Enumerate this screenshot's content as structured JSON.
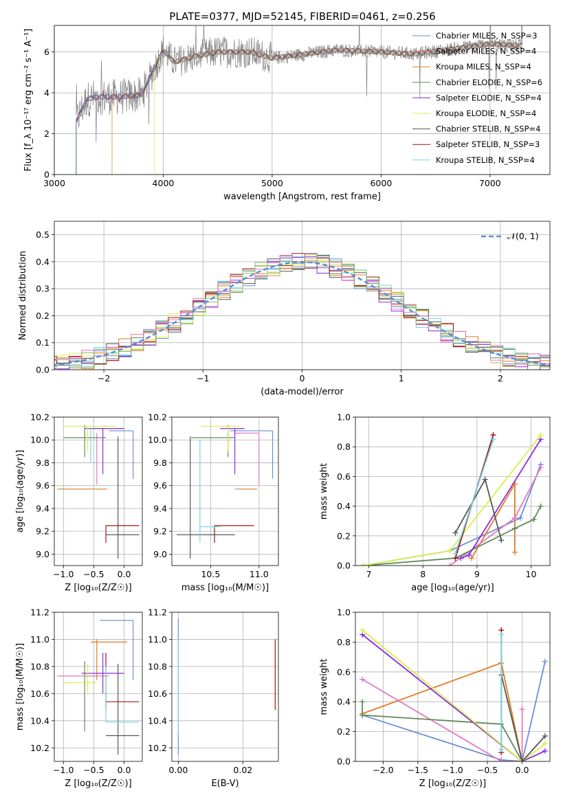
{
  "figure": {
    "title": "PLATE=0377, MJD=52145, FIBERID=0461, z=0.256"
  },
  "colors": {
    "series": [
      "#6b8cd6",
      "#f08080",
      "#e07b20",
      "#5e8a5a",
      "#8a2be2",
      "#d8ee4a",
      "#555555",
      "#a01010",
      "#6fd8e0"
    ],
    "data": "#808080",
    "gaussian": "#5b8fd0",
    "extra_hist": [
      "#e377c2",
      "#8fbc5f"
    ],
    "panel_colors": [
      "#6b8cd6",
      "#e07b20",
      "#e377c2",
      "#5e8a5a",
      "#8a2be2",
      "#d8ee4a",
      "#555555",
      "#a01010",
      "#6fd8e0"
    ]
  },
  "chart_data": [
    {
      "id": "spectrum",
      "type": "line",
      "title": "PLATE=0377, MJD=52145, FIBERID=0461, z=0.256",
      "xlabel": "wavelength [Angstrom, rest frame]",
      "ylabel": "Flux [f_λ 10⁻¹⁷ erg cm⁻² s⁻¹ A⁻¹]",
      "xlim": [
        3000,
        7550
      ],
      "ylim": [
        0,
        7.3
      ],
      "xticks": [
        3000,
        4000,
        5000,
        6000,
        7000
      ],
      "yticks": [
        0,
        2,
        4,
        6
      ],
      "legend_position": "top-right",
      "legend": [
        {
          "name": "Chabrier MILES, N_SSP=3"
        },
        {
          "name": "Salpeter MILES, N_SSP=4"
        },
        {
          "name": "Kroupa MILES, N_SSP=4"
        },
        {
          "name": "Chabrier ELODIE, N_SSP=6"
        },
        {
          "name": "Salpeter ELODIE, N_SSP=4"
        },
        {
          "name": "Kroupa ELODIE, N_SSP=4"
        },
        {
          "name": "Chabrier STELIB, N_SSP=4"
        },
        {
          "name": "Salpeter STELIB, N_SSP=3"
        },
        {
          "name": "Kroupa STELIB, N_SSP=4"
        }
      ],
      "continuum": {
        "x": [
          3200,
          3300,
          3400,
          3600,
          3800,
          4000,
          4100,
          4300,
          4500,
          4800,
          5000,
          5300,
          5600,
          6000,
          6300,
          6600,
          7000,
          7300
        ],
        "y": [
          2.6,
          3.7,
          3.8,
          3.8,
          3.9,
          6.1,
          5.5,
          5.8,
          6.0,
          6.0,
          5.7,
          5.9,
          6.1,
          6.0,
          5.9,
          6.1,
          6.4,
          6.3
        ]
      }
    },
    {
      "id": "residuals",
      "type": "line",
      "xlabel": "(data-model)/error",
      "ylabel": "Normed distribution",
      "xlim": [
        -2.5,
        2.5
      ],
      "ylim": [
        0,
        0.55
      ],
      "xticks": [
        -2,
        -1,
        0,
        1,
        2
      ],
      "yticks": [
        0.0,
        0.1,
        0.2,
        0.3,
        0.4,
        0.5
      ],
      "legend": [
        {
          "name": "𝒩(0, 1)"
        }
      ],
      "legend_position": "top-right"
    },
    {
      "id": "age_vs_Z",
      "type": "scatter",
      "xlabel": "Z [log₁₀(Z/Z☉)]",
      "ylabel": "age  [log₁₀(age/yr)]",
      "xlim": [
        -1.15,
        0.3
      ],
      "ylim": [
        8.9,
        10.2
      ],
      "xticks": [
        -1.0,
        -0.5,
        0.0
      ],
      "yticks": [
        9.0,
        9.2,
        9.4,
        9.6,
        9.8,
        10.0,
        10.2
      ],
      "points": [
        {
          "x": 0.15,
          "y": 10.08,
          "xlo": -0.25,
          "xhi": 0.15,
          "ylo": 9.66,
          "yhi": 10.08
        },
        {
          "x": -0.55,
          "y": 9.57,
          "xlo": -1.1,
          "xhi": -0.28,
          "ylo": 9.57,
          "yhi": 9.57
        },
        {
          "x": -0.45,
          "y": 10.06,
          "xlo": -0.45,
          "xhi": -0.45,
          "ylo": 9.61,
          "yhi": 10.06
        },
        {
          "x": -0.65,
          "y": 10.02,
          "xlo": -1.0,
          "xhi": -0.3,
          "ylo": 9.85,
          "yhi": 10.13
        },
        {
          "x": -0.35,
          "y": 10.1,
          "xlo": -0.65,
          "xhi": 0.0,
          "ylo": 9.7,
          "yhi": 10.1
        },
        {
          "x": -0.6,
          "y": 10.12,
          "xlo": -1.0,
          "xhi": -0.15,
          "ylo": 9.9,
          "yhi": 10.12
        },
        {
          "x": -0.1,
          "y": 9.17,
          "xlo": -0.3,
          "xhi": 0.25,
          "ylo": 8.96,
          "yhi": 10.03
        },
        {
          "x": -0.3,
          "y": 9.25,
          "xlo": -0.3,
          "xhi": 0.25,
          "ylo": 9.1,
          "yhi": 9.25
        },
        {
          "x": -0.55,
          "y": 9.9,
          "xlo": -0.55,
          "xhi": -0.55,
          "ylo": 9.8,
          "yhi": 10.1
        }
      ]
    },
    {
      "id": "age_vs_mass",
      "type": "scatter",
      "xlabel": "mass [log₁₀(M/M☉)]",
      "ylabel": "",
      "xlim": [
        10.1,
        11.2
      ],
      "ylim": [
        8.9,
        10.2
      ],
      "xticks": [
        10.5,
        11.0
      ],
      "yticks": [
        9.0,
        9.2,
        9.4,
        9.6,
        9.8,
        10.0,
        10.2
      ],
      "points": [
        {
          "x": 11.14,
          "y": 10.08,
          "xlo": 10.7,
          "xhi": 11.14,
          "ylo": 9.66,
          "yhi": 10.08
        },
        {
          "x": 10.98,
          "y": 9.57,
          "xlo": 10.75,
          "xhi": 10.98,
          "ylo": 9.57,
          "yhi": 9.57
        },
        {
          "x": 11.0,
          "y": 10.06,
          "xlo": 10.75,
          "xhi": 11.0,
          "ylo": 9.61,
          "yhi": 10.06
        },
        {
          "x": 10.68,
          "y": 10.02,
          "xlo": 10.3,
          "xhi": 10.75,
          "ylo": 9.85,
          "yhi": 10.13
        },
        {
          "x": 10.75,
          "y": 10.1,
          "xlo": 10.6,
          "xhi": 10.85,
          "ylo": 9.7,
          "yhi": 10.1
        },
        {
          "x": 10.68,
          "y": 10.12,
          "xlo": 10.4,
          "xhi": 10.8,
          "ylo": 9.9,
          "yhi": 10.12
        },
        {
          "x": 10.29,
          "y": 9.17,
          "xlo": 10.15,
          "xhi": 10.75,
          "ylo": 8.96,
          "yhi": 10.03
        },
        {
          "x": 10.54,
          "y": 9.25,
          "xlo": 10.54,
          "xhi": 10.95,
          "ylo": 9.1,
          "yhi": 9.25
        },
        {
          "x": 10.39,
          "y": 9.24,
          "xlo": 10.39,
          "xhi": 10.6,
          "ylo": 9.1,
          "yhi": 10.0
        }
      ]
    },
    {
      "id": "mass_weight_vs_age",
      "type": "line",
      "xlabel": "age  [log₁₀(age/yr)]",
      "ylabel": "mass weight",
      "xlim": [
        6.75,
        10.35
      ],
      "ylim": [
        0,
        1.0
      ],
      "xticks": [
        7,
        8,
        9,
        10
      ],
      "yticks": [
        0.0,
        0.2,
        0.4,
        0.6,
        0.8,
        1.0
      ],
      "series": [
        {
          "x": [
            6.9,
            8.5,
            9.8,
            10.18
          ],
          "y": [
            0.0,
            0.1,
            0.32,
            0.68
          ]
        },
        {
          "x": [
            8.9,
            9.7,
            9.7
          ],
          "y": [
            0.05,
            0.55,
            0.09
          ]
        },
        {
          "x": [
            8.5,
            9.7,
            10.18
          ],
          "y": [
            0.0,
            0.32,
            0.66
          ]
        },
        {
          "x": [
            6.9,
            8.6,
            9.7,
            10.05,
            10.18
          ],
          "y": [
            0.0,
            0.05,
            0.25,
            0.31,
            0.4
          ]
        },
        {
          "x": [
            8.7,
            8.85,
            10.18
          ],
          "y": [
            0.05,
            0.07,
            0.85
          ]
        },
        {
          "x": [
            6.9,
            8.5,
            10.18
          ],
          "y": [
            0.0,
            0.1,
            0.88
          ]
        },
        {
          "x": [
            8.6,
            9.15,
            9.45
          ],
          "y": [
            0.22,
            0.58,
            0.17
          ]
        },
        {
          "x": [
            8.6,
            9.3
          ],
          "y": [
            0.05,
            0.88
          ]
        },
        {
          "x": [
            8.6,
            9.3
          ],
          "y": [
            0.08,
            0.85
          ]
        }
      ]
    },
    {
      "id": "mass_vs_Z",
      "type": "scatter",
      "xlabel": "Z [log₁₀(Z/Z☉)]",
      "ylabel": "mass [log₁₀(M/M☉)]",
      "xlim": [
        -1.15,
        0.3
      ],
      "ylim": [
        10.1,
        11.2
      ],
      "xticks": [
        -1.0,
        -0.5,
        0.0
      ],
      "yticks": [
        10.2,
        10.4,
        10.6,
        10.8,
        11.0,
        11.2
      ],
      "points": [
        {
          "x": 0.15,
          "y": 11.14,
          "xlo": -0.4,
          "xhi": 0.15,
          "ylo": 10.7,
          "yhi": 11.14
        },
        {
          "x": -0.45,
          "y": 10.98,
          "xlo": -0.55,
          "xhi": 0.05,
          "ylo": 10.7,
          "yhi": 11.0
        },
        {
          "x": -0.6,
          "y": 10.73,
          "xlo": -1.1,
          "xhi": -0.25,
          "ylo": 10.73,
          "yhi": 10.73
        },
        {
          "x": -0.65,
          "y": 10.68,
          "xlo": -0.65,
          "xhi": -0.65,
          "ylo": 10.32,
          "yhi": 10.84
        },
        {
          "x": -0.35,
          "y": 10.75,
          "xlo": -0.7,
          "xhi": 0.0,
          "ylo": 10.6,
          "yhi": 10.9
        },
        {
          "x": -0.6,
          "y": 10.68,
          "xlo": -1.0,
          "xhi": -0.45,
          "ylo": 10.6,
          "yhi": 10.82
        },
        {
          "x": -0.1,
          "y": 10.29,
          "xlo": -0.3,
          "xhi": 0.25,
          "ylo": 10.15,
          "yhi": 10.82
        },
        {
          "x": -0.3,
          "y": 10.54,
          "xlo": -0.3,
          "xhi": 0.25,
          "ylo": 10.48,
          "yhi": 10.9
        },
        {
          "x": -0.3,
          "y": 10.39,
          "xlo": -0.3,
          "xhi": 0.25,
          "ylo": 10.39,
          "yhi": 10.8
        }
      ]
    },
    {
      "id": "mass_vs_ebv",
      "type": "scatter",
      "xlabel": "E(B-V)",
      "ylabel": "",
      "xlim": [
        -0.002,
        0.031
      ],
      "ylim": [
        10.1,
        11.2
      ],
      "xticks": [
        0.0,
        0.02
      ],
      "yticks": [
        10.2,
        10.4,
        10.6,
        10.8,
        11.0,
        11.2
      ],
      "segments": [
        {
          "x": 0.0,
          "ylo": 10.15,
          "yhi": 11.15
        },
        {
          "x": 0.0,
          "ylo": 10.3,
          "yhi": 11.0
        },
        {
          "x": 0.03,
          "ylo": 10.48,
          "yhi": 11.0
        }
      ]
    },
    {
      "id": "mass_weight_vs_Z",
      "type": "line",
      "xlabel": "Z [log₁₀(Z/Z☉)]",
      "ylabel": "mass weight",
      "xlim": [
        -2.4,
        0.4
      ],
      "ylim": [
        0,
        1.0
      ],
      "xticks": [
        -2.0,
        -1.5,
        -1.0,
        -0.5,
        0.0
      ],
      "yticks": [
        0.0,
        0.2,
        0.4,
        0.6,
        0.8,
        1.0
      ],
      "series": [
        {
          "x": [
            -2.3,
            -0.3,
            0.0,
            0.33
          ],
          "y": [
            0.31,
            0.01,
            0.0,
            0.67
          ]
        },
        {
          "x": [
            -2.3,
            -0.3,
            0.0
          ],
          "y": [
            0.32,
            0.66,
            0.0
          ]
        },
        {
          "x": [
            -2.3,
            -0.3,
            0.0,
            0.0
          ],
          "y": [
            0.55,
            0.0,
            0.0,
            0.35
          ]
        },
        {
          "x": [
            -2.3,
            -2.3,
            -0.3,
            0.0
          ],
          "y": [
            0.4,
            0.31,
            0.25,
            0.0
          ]
        },
        {
          "x": [
            -2.3,
            0.0,
            0.33
          ],
          "y": [
            0.85,
            0.0,
            0.07
          ]
        },
        {
          "x": [
            -2.3,
            0.0,
            0.33
          ],
          "y": [
            0.88,
            0.0,
            0.12
          ]
        },
        {
          "x": [
            -0.3,
            0.0,
            0.33
          ],
          "y": [
            0.58,
            0.0,
            0.17
          ]
        },
        {
          "x": [
            -0.3,
            -0.3
          ],
          "y": [
            0.88,
            0.06
          ]
        },
        {
          "x": [
            -0.3,
            -0.3
          ],
          "y": [
            0.85,
            0.08
          ]
        }
      ]
    }
  ]
}
